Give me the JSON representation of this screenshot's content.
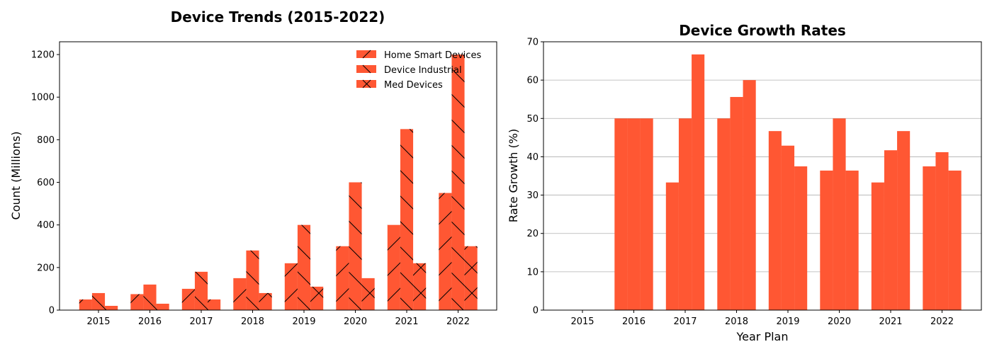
{
  "chart_data": [
    {
      "type": "bar",
      "title": "Device Trends (2015-2022)",
      "xlabel": "",
      "ylabel": "Count (Millions)",
      "categories": [
        "2015",
        "2016",
        "2017",
        "2018",
        "2019",
        "2020",
        "2021",
        "2022"
      ],
      "series": [
        {
          "name": "Home Smart Devices",
          "values": [
            50,
            75,
            100,
            150,
            220,
            300,
            400,
            550
          ],
          "hatch": "/"
        },
        {
          "name": "Device Industrial",
          "values": [
            80,
            120,
            180,
            280,
            400,
            600,
            850,
            1200
          ],
          "hatch": "\\"
        },
        {
          "name": "Med Devices",
          "values": [
            20,
            30,
            50,
            80,
            110,
            150,
            220,
            300
          ],
          "hatch": "x"
        }
      ],
      "ylim": [
        0,
        1260
      ],
      "yticks": [
        0,
        200,
        400,
        600,
        800,
        1000,
        1200
      ],
      "grid": false,
      "legend": "top-right",
      "color": "#ff5733"
    },
    {
      "type": "bar",
      "title": "Device Growth Rates",
      "xlabel": "Year Plan",
      "ylabel": "Rate Growth (%)",
      "categories": [
        "2015",
        "2016",
        "2017",
        "2018",
        "2019",
        "2020",
        "2021",
        "2022"
      ],
      "series": [
        {
          "values": [
            0,
            50,
            33.3,
            50,
            46.7,
            36.4,
            33.3,
            37.5
          ]
        },
        {
          "values": [
            0,
            50,
            50,
            55.6,
            42.9,
            50,
            41.7,
            41.2
          ]
        },
        {
          "values": [
            0,
            50,
            66.7,
            60,
            37.5,
            36.4,
            46.7,
            36.4
          ]
        }
      ],
      "ylim": [
        0,
        70
      ],
      "yticks": [
        0,
        10,
        20,
        30,
        40,
        50,
        60,
        70
      ],
      "grid": true,
      "color": "#ff5733"
    }
  ]
}
